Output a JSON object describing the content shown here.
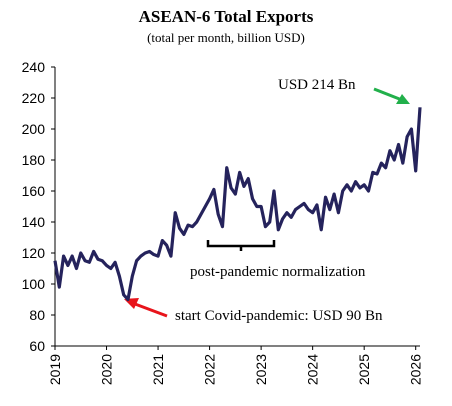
{
  "chart_data": {
    "type": "line",
    "title": "ASEAN-6 Total Exports",
    "subtitle": "(total per month, billion USD)",
    "categories": [
      "2019",
      null,
      null,
      null,
      null,
      null,
      null,
      null,
      null,
      null,
      null,
      null,
      "2020",
      null,
      null,
      null,
      null,
      null,
      null,
      null,
      null,
      null,
      null,
      null,
      "2021",
      null,
      null,
      null,
      null,
      null,
      null,
      null,
      null,
      null,
      null,
      null,
      "2022",
      null,
      null,
      null,
      null,
      null,
      null,
      null,
      null,
      null,
      null,
      null,
      "2023",
      null,
      null,
      null,
      null,
      null,
      null,
      null,
      null,
      null,
      null,
      null,
      "2024",
      null,
      null,
      null,
      null,
      null,
      null,
      null,
      null,
      null,
      null,
      null,
      "2025",
      null,
      null,
      null,
      null,
      null,
      null,
      null,
      null,
      null,
      null,
      null,
      "2026",
      null
    ],
    "series": [
      {
        "name": "ASEAN-6 Total Exports",
        "color": "#25235c",
        "values": [
          115,
          98,
          118,
          112,
          118,
          110,
          120,
          115,
          114,
          121,
          116,
          115,
          112,
          110,
          114,
          105,
          93,
          90,
          105,
          115,
          118,
          120,
          121,
          119,
          118,
          128,
          125,
          118,
          146,
          136,
          132,
          138,
          137,
          140,
          145,
          150,
          155,
          161,
          145,
          137,
          175,
          162,
          158,
          172,
          163,
          168,
          155,
          150,
          150,
          137,
          140,
          160,
          135,
          142,
          146,
          143,
          148,
          150,
          152,
          148,
          146,
          151,
          135,
          156,
          148,
          158,
          146,
          160,
          164,
          160,
          166,
          162,
          164,
          160,
          172,
          171,
          178,
          175,
          186,
          180,
          190,
          178,
          195,
          200,
          173,
          214
        ]
      }
    ],
    "ylim": [
      60,
      240
    ],
    "yticks": [
      60,
      80,
      100,
      120,
      140,
      160,
      180,
      200,
      220,
      240
    ],
    "annotations": [
      "USD 214 Bn",
      "start Covid-pandemic: USD 90 Bn",
      "post-pandemic normalization"
    ]
  }
}
